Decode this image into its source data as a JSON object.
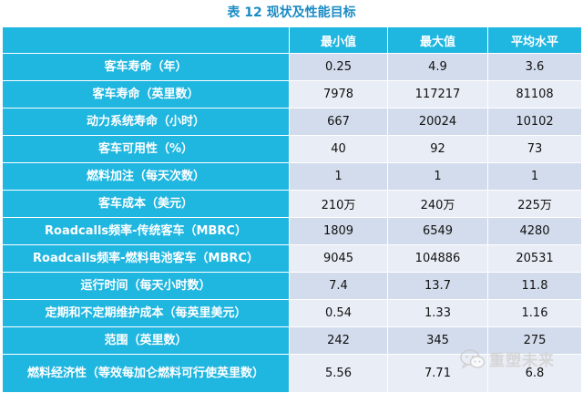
{
  "caption": "表 12 现状及性能目标",
  "table": {
    "headers": [
      "",
      "最小值",
      "最大值",
      "平均水平"
    ],
    "rows": [
      {
        "label": "客车寿命（年）",
        "min": "0.25",
        "max": "4.9",
        "avg": "3.6"
      },
      {
        "label": "客车寿命（英里数）",
        "min": "7978",
        "max": "117217",
        "avg": "81108"
      },
      {
        "label": "动力系统寿命（小时）",
        "min": "667",
        "max": "20024",
        "avg": "10102"
      },
      {
        "label": "客车可用性（%）",
        "min": "40",
        "max": "92",
        "avg": "73"
      },
      {
        "label": "燃料加注（每天次数）",
        "min": "1",
        "max": "1",
        "avg": "1"
      },
      {
        "label": "客车成本（美元）",
        "min": "210万",
        "max": "240万",
        "avg": "225万"
      },
      {
        "label": "Roadcalls频率-传统客车（MBRC）",
        "min": "1809",
        "max": "6549",
        "avg": "4280"
      },
      {
        "label": "Roadcalls频率-燃料电池客车（MBRC）",
        "min": "9045",
        "max": "104886",
        "avg": "20531"
      },
      {
        "label": "运行时间（每天小时数）",
        "min": "7.4",
        "max": "13.7",
        "avg": "11.8"
      },
      {
        "label": "定期和不定期维护成本（每英里美元）",
        "min": "0.54",
        "max": "1.33",
        "avg": "1.16"
      },
      {
        "label": "范围（英里数）",
        "min": "242",
        "max": "345",
        "avg": "275"
      },
      {
        "label": "燃料经济性（等效每加仑燃料可行使英里数）",
        "min": "5.56",
        "max": "7.71",
        "avg": "6.8"
      }
    ]
  },
  "watermark": {
    "text": "重塑未来",
    "icon": "wechat-icon"
  },
  "colors": {
    "caption": "#1a8bc4",
    "header_bg": "#1fb6e0",
    "row_odd": "#d3dcec",
    "row_even": "#e9edf5"
  }
}
